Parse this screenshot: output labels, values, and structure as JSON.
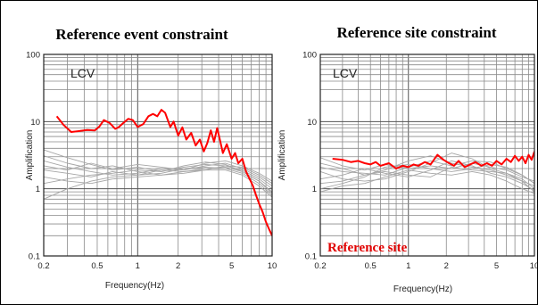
{
  "chart_data": [
    {
      "type": "line",
      "title": "Reference event constraint",
      "xlabel": "Frequency(Hz)",
      "ylabel": "Amplification",
      "xscale": "log",
      "yscale": "log",
      "xlim": [
        0.2,
        10
      ],
      "ylim": [
        0.1,
        100
      ],
      "xticks": [
        "0.2",
        "0.5",
        "1",
        "2",
        "5",
        "10"
      ],
      "yticks": [
        "0.1",
        "1",
        "10",
        "100"
      ],
      "grid": true,
      "station_label": "LCV",
      "series": [
        {
          "color": "#ff0000",
          "role": "highlight",
          "x": [
            0.25,
            0.28,
            0.32,
            0.36,
            0.42,
            0.48,
            0.52,
            0.56,
            0.62,
            0.68,
            0.72,
            0.78,
            0.85,
            0.92,
            1.0,
            1.1,
            1.2,
            1.3,
            1.4,
            1.5,
            1.6,
            1.75,
            1.85,
            2.0,
            2.15,
            2.3,
            2.5,
            2.7,
            2.9,
            3.1,
            3.3,
            3.5,
            3.7,
            3.9,
            4.1,
            4.3,
            4.6,
            5.0,
            5.3,
            5.6,
            6.0,
            6.4,
            6.8,
            7.2,
            7.6,
            8.0,
            8.5,
            9.0,
            9.5,
            10.0
          ],
          "y": [
            12,
            9,
            7,
            7.2,
            7.5,
            7.4,
            8.5,
            10.5,
            9.5,
            7.8,
            8.2,
            9.5,
            11,
            10.5,
            8.3,
            9.2,
            12,
            13,
            12,
            15,
            13.5,
            8.3,
            10,
            6.2,
            8.2,
            5.4,
            6.8,
            4.4,
            5.4,
            3.6,
            4.8,
            7.4,
            5,
            8,
            5.2,
            3.4,
            4.6,
            2.8,
            3.4,
            2.4,
            2.8,
            1.8,
            1.4,
            1.1,
            0.8,
            0.6,
            0.45,
            0.32,
            0.25,
            0.2
          ]
        },
        {
          "color": "#a6a6a6",
          "role": "other events",
          "x": [
            0.2,
            0.3,
            0.45,
            0.65,
            1.0,
            1.5,
            2.2,
            3.2,
            4.5,
            6.0,
            8.0,
            10.0
          ],
          "y": [
            3.8,
            2.9,
            2.3,
            1.9,
            2.1,
            1.8,
            2.2,
            2.5,
            2.3,
            1.8,
            1.3,
            0.9
          ]
        },
        {
          "color": "#a6a6a6",
          "role": "other events",
          "x": [
            0.2,
            0.3,
            0.45,
            0.65,
            1.0,
            1.5,
            2.2,
            3.2,
            4.5,
            6.0,
            8.0,
            10.0
          ],
          "y": [
            2.6,
            2.1,
            1.8,
            1.6,
            1.7,
            2.0,
            1.9,
            2.2,
            2.4,
            2.0,
            1.5,
            1.1
          ]
        },
        {
          "color": "#a6a6a6",
          "role": "other events",
          "x": [
            0.2,
            0.3,
            0.45,
            0.65,
            1.0,
            1.5,
            2.2,
            3.2,
            4.5,
            6.0,
            8.0,
            10.0
          ],
          "y": [
            1.9,
            1.7,
            1.5,
            1.8,
            1.6,
            1.7,
            2.0,
            2.1,
            2.0,
            1.7,
            1.2,
            0.8
          ]
        },
        {
          "color": "#a6a6a6",
          "role": "other events",
          "x": [
            0.2,
            0.3,
            0.45,
            0.65,
            1.0,
            1.5,
            2.2,
            3.2,
            4.5,
            6.0,
            8.0,
            10.0
          ],
          "y": [
            1.2,
            1.4,
            1.6,
            1.7,
            1.9,
            1.8,
            2.1,
            2.3,
            2.2,
            1.9,
            1.4,
            1.0
          ]
        },
        {
          "color": "#a6a6a6",
          "role": "other events",
          "x": [
            0.2,
            0.3,
            0.45,
            0.65,
            1.0,
            1.5,
            2.2,
            3.2,
            4.5,
            6.0,
            8.0,
            10.0
          ],
          "y": [
            0.7,
            1.0,
            1.3,
            1.5,
            1.6,
            1.9,
            1.8,
            2.0,
            2.1,
            1.8,
            1.3,
            0.85
          ]
        },
        {
          "color": "#a6a6a6",
          "role": "other events",
          "x": [
            0.2,
            0.3,
            0.45,
            0.65,
            1.0,
            1.5,
            2.2,
            3.2,
            4.5,
            6.0,
            8.0,
            10.0
          ],
          "y": [
            3.1,
            2.4,
            2.0,
            2.2,
            1.8,
            1.6,
            1.7,
            1.9,
            2.2,
            2.1,
            1.6,
            1.2
          ]
        },
        {
          "color": "#a6a6a6",
          "role": "other events",
          "x": [
            0.2,
            0.3,
            0.45,
            0.65,
            1.0,
            1.5,
            2.2,
            3.2,
            4.5,
            6.0,
            8.0,
            10.0
          ],
          "y": [
            2.2,
            1.9,
            2.4,
            2.0,
            2.3,
            2.1,
            1.9,
            2.4,
            2.6,
            2.2,
            1.7,
            1.3
          ]
        },
        {
          "color": "#a6a6a6",
          "role": "other events",
          "x": [
            0.2,
            0.3,
            0.45,
            0.65,
            1.0,
            1.5,
            2.2,
            3.2,
            4.5,
            6.0,
            8.0,
            10.0
          ],
          "y": [
            1.5,
            1.3,
            1.2,
            1.4,
            1.5,
            1.6,
            1.8,
            1.9,
            1.9,
            1.6,
            1.1,
            0.75
          ]
        }
      ]
    },
    {
      "type": "line",
      "title": "Reference site constraint",
      "xlabel": "Frequency(Hz)",
      "ylabel": "Amplification",
      "xscale": "log",
      "yscale": "log",
      "xlim": [
        0.2,
        10
      ],
      "ylim": [
        0.1,
        100
      ],
      "xticks": [
        "0.2",
        "0.5",
        "1",
        "2",
        "5",
        "10"
      ],
      "yticks": [
        "0.1",
        "1",
        "10",
        "100"
      ],
      "grid": true,
      "station_label": "LCV",
      "annotation": "Reference site",
      "series": [
        {
          "color": "#ff0000",
          "role": "highlight",
          "x": [
            0.25,
            0.3,
            0.35,
            0.4,
            0.45,
            0.5,
            0.55,
            0.6,
            0.7,
            0.8,
            0.9,
            1.0,
            1.1,
            1.2,
            1.35,
            1.5,
            1.7,
            1.9,
            2.1,
            2.3,
            2.5,
            2.8,
            3.1,
            3.4,
            3.8,
            4.2,
            4.6,
            5.0,
            5.5,
            6.0,
            6.5,
            7.0,
            7.5,
            8.0,
            8.5,
            9.0,
            9.5,
            10.0
          ],
          "y": [
            2.8,
            2.7,
            2.5,
            2.6,
            2.4,
            2.3,
            2.5,
            2.2,
            2.4,
            2.0,
            2.2,
            2.1,
            2.3,
            2.2,
            2.5,
            2.3,
            3.2,
            2.7,
            2.4,
            2.2,
            2.6,
            2.1,
            2.3,
            2.5,
            2.2,
            2.4,
            2.2,
            2.6,
            2.3,
            2.8,
            2.5,
            3.1,
            2.6,
            3.0,
            2.4,
            3.2,
            2.7,
            3.6
          ]
        },
        {
          "color": "#a6a6a6",
          "role": "other sites",
          "x": [
            0.2,
            0.3,
            0.45,
            0.65,
            1.0,
            1.5,
            2.2,
            3.2,
            4.5,
            6.0,
            8.0,
            10.0
          ],
          "y": [
            2.4,
            2.0,
            1.6,
            1.9,
            2.6,
            3.1,
            2.4,
            2.1,
            1.9,
            1.6,
            1.3,
            1.1
          ]
        },
        {
          "color": "#a6a6a6",
          "role": "other sites",
          "x": [
            0.2,
            0.3,
            0.45,
            0.65,
            1.0,
            1.5,
            2.2,
            3.2,
            4.5,
            6.0,
            8.0,
            10.0
          ],
          "y": [
            1.4,
            1.6,
            2.0,
            1.7,
            1.5,
            1.9,
            2.6,
            2.2,
            1.7,
            1.5,
            1.2,
            0.95
          ]
        },
        {
          "color": "#a6a6a6",
          "role": "other sites",
          "x": [
            0.2,
            0.3,
            0.45,
            0.65,
            1.0,
            1.5,
            2.2,
            3.2,
            4.5,
            6.0,
            8.0,
            10.0
          ],
          "y": [
            1.0,
            1.2,
            1.5,
            2.1,
            2.3,
            2.0,
            1.8,
            2.0,
            2.3,
            2.1,
            1.6,
            1.2
          ]
        },
        {
          "color": "#a6a6a6",
          "role": "other sites",
          "x": [
            0.2,
            0.3,
            0.45,
            0.65,
            1.0,
            1.5,
            2.2,
            3.2,
            4.5,
            6.0,
            8.0,
            10.0
          ],
          "y": [
            1.8,
            1.4,
            1.3,
            1.4,
            1.8,
            2.4,
            3.4,
            2.8,
            2.0,
            1.7,
            1.4,
            1.0
          ]
        },
        {
          "color": "#a6a6a6",
          "role": "other sites",
          "x": [
            0.2,
            0.3,
            0.45,
            0.65,
            1.0,
            1.5,
            2.2,
            3.2,
            4.5,
            6.0,
            8.0,
            10.0
          ],
          "y": [
            0.9,
            1.1,
            1.2,
            1.5,
            1.9,
            1.7,
            1.6,
            1.8,
            1.6,
            1.3,
            1.0,
            0.85
          ]
        },
        {
          "color": "#a6a6a6",
          "role": "other sites",
          "x": [
            0.2,
            0.3,
            0.45,
            0.65,
            1.0,
            1.5,
            2.2,
            3.2,
            4.5,
            6.0,
            8.0,
            10.0
          ],
          "y": [
            2.9,
            2.2,
            1.9,
            2.3,
            2.0,
            2.2,
            2.0,
            2.4,
            2.1,
            1.9,
            1.5,
            1.3
          ]
        },
        {
          "color": "#a6a6a6",
          "role": "other sites",
          "x": [
            0.2,
            0.3,
            0.45,
            0.65,
            1.0,
            1.5,
            2.2,
            3.2,
            4.5,
            6.0,
            8.0,
            10.0
          ],
          "y": [
            1.2,
            1.3,
            1.6,
            1.8,
            1.6,
            1.5,
            2.1,
            1.9,
            1.8,
            1.7,
            1.3,
            0.9
          ]
        },
        {
          "color": "#a6a6a6",
          "role": "other sites",
          "x": [
            0.2,
            0.3,
            0.45,
            0.65,
            1.0,
            1.5,
            2.2,
            3.2,
            4.5,
            6.0,
            8.0,
            10.0
          ],
          "y": [
            2.1,
            1.8,
            1.7,
            1.6,
            2.1,
            2.6,
            2.2,
            2.6,
            2.5,
            2.0,
            1.6,
            1.2
          ]
        }
      ]
    }
  ]
}
